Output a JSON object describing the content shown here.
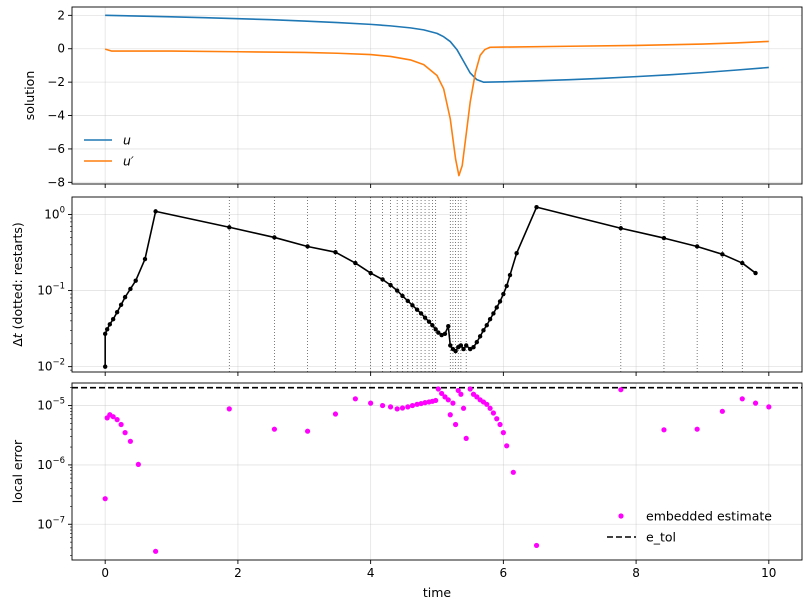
{
  "chart_data": [
    {
      "type": "line",
      "ylabel": "solution",
      "xlabel": "",
      "xlim": [
        -0.5,
        10.5
      ],
      "ylim": [
        -8.1,
        2.5
      ],
      "yticks": [
        2,
        0,
        -2,
        -4,
        -6,
        -8
      ],
      "xticks": [
        0,
        2,
        4,
        6,
        8,
        10
      ],
      "x_ticklabels_shown": false,
      "grid": true,
      "legend": "lower-left",
      "series": [
        {
          "name": "u",
          "color": "#1f77b4",
          "points": [
            [
              0,
              2.0
            ],
            [
              0.5,
              1.96
            ],
            [
              1,
              1.91
            ],
            [
              1.5,
              1.86
            ],
            [
              2,
              1.8
            ],
            [
              2.5,
              1.74
            ],
            [
              3,
              1.66
            ],
            [
              3.5,
              1.57
            ],
            [
              4,
              1.46
            ],
            [
              4.3,
              1.37
            ],
            [
              4.6,
              1.25
            ],
            [
              4.8,
              1.13
            ],
            [
              5.0,
              0.92
            ],
            [
              5.1,
              0.72
            ],
            [
              5.2,
              0.43
            ],
            [
              5.3,
              -0.05
            ],
            [
              5.4,
              -0.75
            ],
            [
              5.5,
              -1.45
            ],
            [
              5.6,
              -1.85
            ],
            [
              5.7,
              -2.0
            ],
            [
              6,
              -1.98
            ],
            [
              6.5,
              -1.92
            ],
            [
              7,
              -1.85
            ],
            [
              7.5,
              -1.77
            ],
            [
              8,
              -1.67
            ],
            [
              8.5,
              -1.56
            ],
            [
              9,
              -1.43
            ],
            [
              9.5,
              -1.28
            ],
            [
              10,
              -1.12
            ]
          ]
        },
        {
          "name": "u′",
          "color": "#ff7f0e",
          "points": [
            [
              0,
              -0.02
            ],
            [
              0.1,
              -0.14
            ],
            [
              0.5,
              -0.14
            ],
            [
              1,
              -0.14
            ],
            [
              2,
              -0.18
            ],
            [
              3,
              -0.22
            ],
            [
              3.5,
              -0.27
            ],
            [
              4,
              -0.35
            ],
            [
              4.3,
              -0.46
            ],
            [
              4.6,
              -0.67
            ],
            [
              4.8,
              -0.95
            ],
            [
              5.0,
              -1.6
            ],
            [
              5.1,
              -2.4
            ],
            [
              5.2,
              -4.2
            ],
            [
              5.28,
              -6.6
            ],
            [
              5.33,
              -7.6
            ],
            [
              5.38,
              -7.0
            ],
            [
              5.45,
              -4.8
            ],
            [
              5.5,
              -3.2
            ],
            [
              5.58,
              -1.4
            ],
            [
              5.65,
              -0.4
            ],
            [
              5.72,
              -0.05
            ],
            [
              5.8,
              0.09
            ],
            [
              6,
              0.1
            ],
            [
              7,
              0.15
            ],
            [
              8,
              0.2
            ],
            [
              9,
              0.28
            ],
            [
              9.5,
              0.35
            ],
            [
              10,
              0.44
            ]
          ]
        }
      ]
    },
    {
      "type": "line",
      "ylabel": "Δt (dotted: restarts)",
      "xlabel": "",
      "xlim": [
        -0.5,
        10.5
      ],
      "ylim": [
        0.0085,
        1.7
      ],
      "yscale": "log",
      "yticks": [
        0.01,
        0.1,
        1
      ],
      "ytick_labels": [
        "10",
        "10",
        "10"
      ],
      "ytick_exponents": [
        "−2",
        "−1",
        "0"
      ],
      "xticks": [
        0,
        2,
        4,
        6,
        8,
        10
      ],
      "x_ticklabels_shown": false,
      "grid": true,
      "series": [
        {
          "color": "#000000",
          "marker": "circle",
          "points": [
            [
              0,
              0.01
            ],
            [
              0,
              0.027
            ],
            [
              0.03,
              0.031
            ],
            [
              0.07,
              0.036
            ],
            [
              0.12,
              0.042
            ],
            [
              0.18,
              0.052
            ],
            [
              0.24,
              0.065
            ],
            [
              0.3,
              0.082
            ],
            [
              0.38,
              0.105
            ],
            [
              0.46,
              0.135
            ],
            [
              0.6,
              0.26
            ],
            [
              0.76,
              1.1
            ],
            [
              1.87,
              0.68
            ],
            [
              2.55,
              0.5
            ],
            [
              3.05,
              0.38
            ],
            [
              3.47,
              0.32
            ],
            [
              3.77,
              0.23
            ],
            [
              4.0,
              0.17
            ],
            [
              4.18,
              0.14
            ],
            [
              4.3,
              0.118
            ],
            [
              4.4,
              0.1
            ],
            [
              4.48,
              0.085
            ],
            [
              4.56,
              0.073
            ],
            [
              4.63,
              0.064
            ],
            [
              4.7,
              0.056
            ],
            [
              4.76,
              0.05
            ],
            [
              4.82,
              0.044
            ],
            [
              4.88,
              0.039
            ],
            [
              4.93,
              0.035
            ],
            [
              4.98,
              0.031
            ],
            [
              5.02,
              0.028
            ],
            [
              5.07,
              0.026
            ],
            [
              5.12,
              0.027
            ],
            [
              5.17,
              0.034
            ],
            [
              5.2,
              0.019
            ],
            [
              5.24,
              0.017
            ],
            [
              5.28,
              0.016
            ],
            [
              5.32,
              0.018
            ],
            [
              5.36,
              0.019
            ],
            [
              5.4,
              0.017
            ],
            [
              5.44,
              0.019
            ],
            [
              5.5,
              0.017
            ],
            [
              5.55,
              0.018
            ],
            [
              5.6,
              0.021
            ],
            [
              5.65,
              0.025
            ],
            [
              5.7,
              0.03
            ],
            [
              5.75,
              0.035
            ],
            [
              5.8,
              0.042
            ],
            [
              5.85,
              0.05
            ],
            [
              5.9,
              0.06
            ],
            [
              5.95,
              0.072
            ],
            [
              6.0,
              0.09
            ],
            [
              6.05,
              0.115
            ],
            [
              6.1,
              0.16
            ],
            [
              6.2,
              0.31
            ],
            [
              6.5,
              1.25
            ],
            [
              7.77,
              0.66
            ],
            [
              8.42,
              0.49
            ],
            [
              8.92,
              0.38
            ],
            [
              9.3,
              0.3
            ],
            [
              9.6,
              0.23
            ],
            [
              9.8,
              0.17
            ]
          ]
        }
      ],
      "restarts": [
        1.87,
        2.55,
        3.05,
        3.47,
        3.77,
        4.0,
        4.18,
        4.3,
        4.4,
        4.48,
        4.56,
        4.63,
        4.7,
        4.76,
        4.82,
        4.88,
        4.93,
        4.98,
        5.2,
        5.24,
        5.28,
        5.32,
        5.36,
        5.44,
        7.77,
        8.42,
        8.92,
        9.3,
        9.6
      ]
    },
    {
      "type": "scatter",
      "ylabel": "local error",
      "xlabel": "time",
      "xlim": [
        -0.5,
        10.5
      ],
      "ylim": [
        2.5e-08,
        2.4e-05
      ],
      "yscale": "log",
      "yticks": [
        1e-07,
        1e-06,
        1e-05
      ],
      "ytick_labels": [
        "10",
        "10",
        "10"
      ],
      "ytick_exponents": [
        "−7",
        "−6",
        "−5"
      ],
      "xticks": [
        0,
        2,
        4,
        6,
        8,
        10
      ],
      "xtick_labels": [
        "0",
        "2",
        "4",
        "6",
        "8",
        "10"
      ],
      "grid": true,
      "legend": "lower-right",
      "etol": 2e-05,
      "series": [
        {
          "name": "embedded estimate",
          "color": "#ff00ff",
          "marker": "circle",
          "points": [
            [
              0,
              2.7e-07
            ],
            [
              0.03,
              6.2e-06
            ],
            [
              0.07,
              7e-06
            ],
            [
              0.12,
              6.5e-06
            ],
            [
              0.18,
              5.8e-06
            ],
            [
              0.24,
              4.8e-06
            ],
            [
              0.3,
              3.5e-06
            ],
            [
              0.38,
              2.5e-06
            ],
            [
              0.5,
              1.02e-06
            ],
            [
              0.76,
              3.5e-08
            ],
            [
              1.87,
              8.8e-06
            ],
            [
              2.55,
              4e-06
            ],
            [
              3.05,
              3.7e-06
            ],
            [
              3.47,
              7.2e-06
            ],
            [
              3.77,
              1.3e-05
            ],
            [
              4.0,
              1.1e-05
            ],
            [
              4.18,
              1e-05
            ],
            [
              4.3,
              9.5e-06
            ],
            [
              4.4,
              8.8e-06
            ],
            [
              4.48,
              9.1e-06
            ],
            [
              4.56,
              9.5e-06
            ],
            [
              4.63,
              1e-05
            ],
            [
              4.7,
              1.05e-05
            ],
            [
              4.76,
              1.08e-05
            ],
            [
              4.82,
              1.12e-05
            ],
            [
              4.88,
              1.15e-05
            ],
            [
              4.93,
              1.18e-05
            ],
            [
              4.98,
              1.22e-05
            ],
            [
              5.02,
              1.9e-05
            ],
            [
              5.07,
              1.6e-05
            ],
            [
              5.12,
              1.4e-05
            ],
            [
              5.17,
              1.25e-05
            ],
            [
              5.2,
              7e-06
            ],
            [
              5.24,
              1.1e-05
            ],
            [
              5.28,
              4.8e-06
            ],
            [
              5.32,
              1.8e-05
            ],
            [
              5.36,
              1.55e-05
            ],
            [
              5.4,
              9e-06
            ],
            [
              5.44,
              2.8e-06
            ],
            [
              5.5,
              1.9e-05
            ],
            [
              5.55,
              1.55e-05
            ],
            [
              5.6,
              1.4e-05
            ],
            [
              5.65,
              1.25e-05
            ],
            [
              5.7,
              1.15e-05
            ],
            [
              5.75,
              1.05e-05
            ],
            [
              5.8,
              9e-06
            ],
            [
              5.85,
              7.5e-06
            ],
            [
              5.9,
              6e-06
            ],
            [
              5.95,
              4.8e-06
            ],
            [
              6.0,
              3.5e-06
            ],
            [
              6.05,
              2.1e-06
            ],
            [
              6.15,
              7.5e-07
            ],
            [
              6.5,
              4.4e-08
            ],
            [
              7.77,
              1.85e-05
            ],
            [
              8.42,
              3.9e-06
            ],
            [
              8.92,
              4e-06
            ],
            [
              9.3,
              8e-06
            ],
            [
              9.6,
              1.3e-05
            ],
            [
              9.8,
              1.1e-05
            ],
            [
              10,
              9.5e-06
            ]
          ]
        },
        {
          "name": "e_tol",
          "color": "#000000",
          "style": "dashed"
        }
      ]
    }
  ]
}
